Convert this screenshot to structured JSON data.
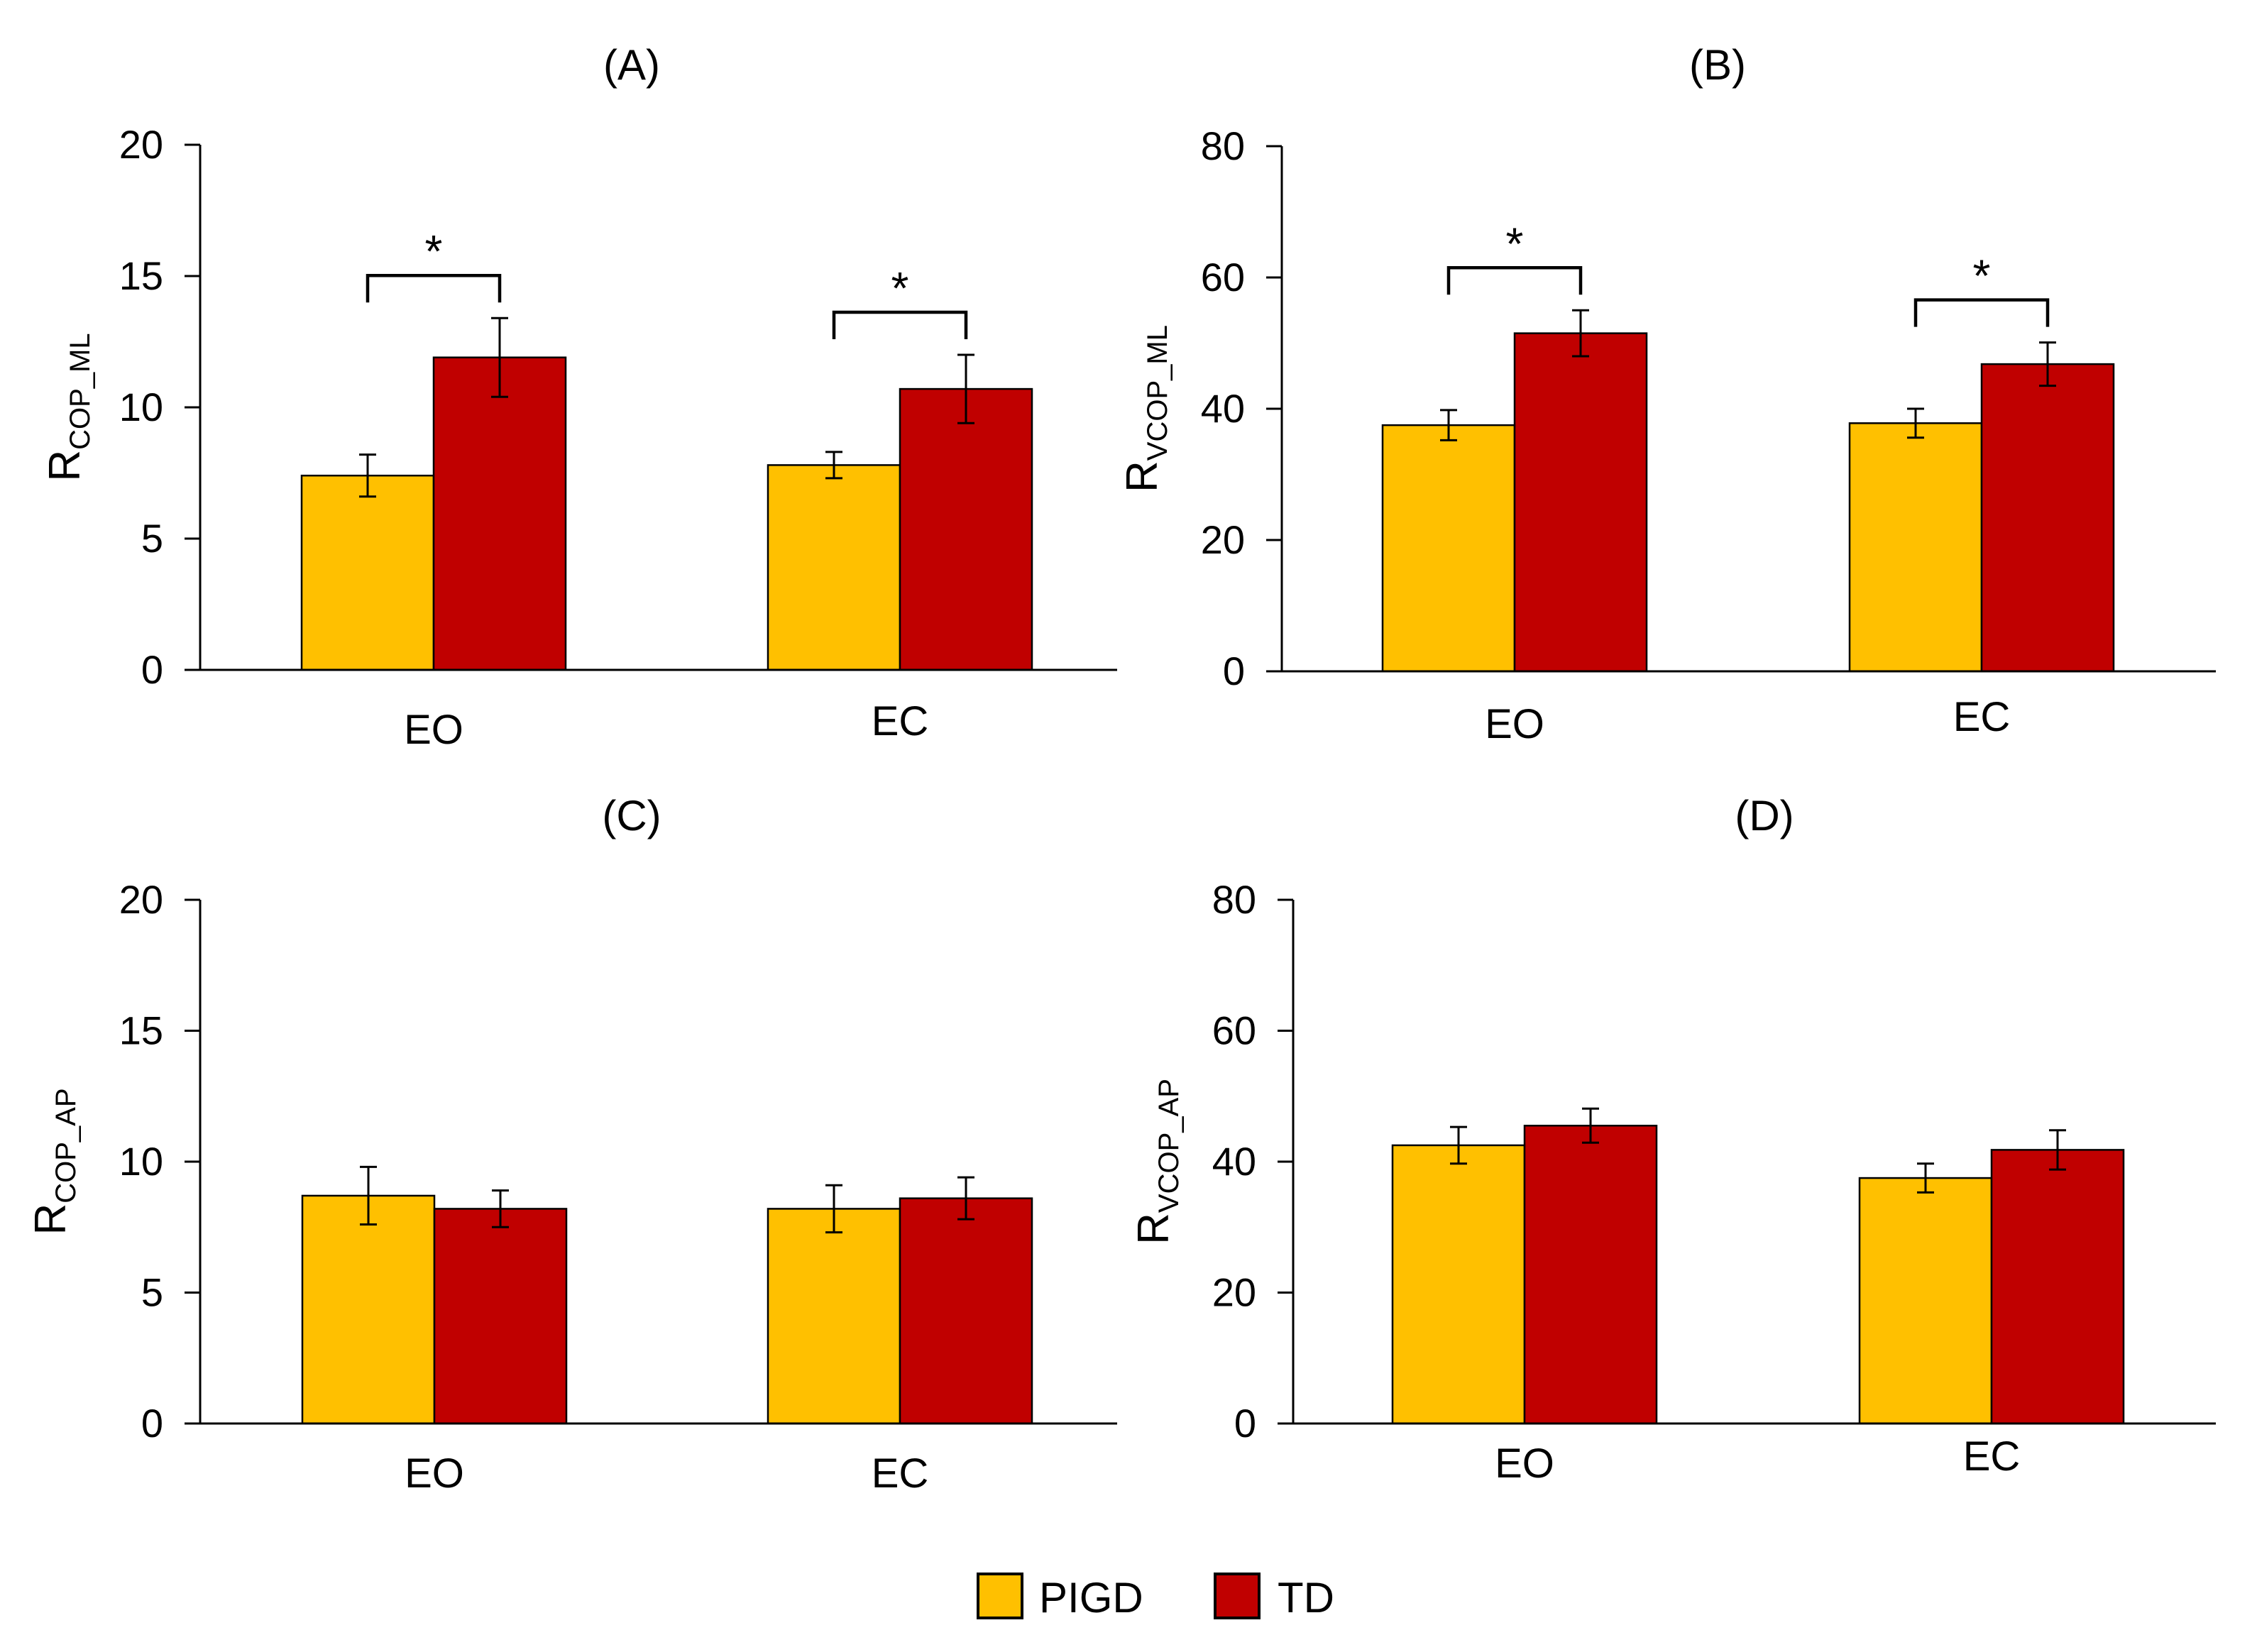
{
  "colors": {
    "PIGD": "#FFC000",
    "TD": "#C00000"
  },
  "legend": {
    "items": [
      {
        "name": "PIGD"
      },
      {
        "name": "TD"
      }
    ]
  },
  "chart_data": [
    {
      "id": "A",
      "type": "bar",
      "title": "(A)",
      "ylabel_main": "R",
      "ylabel_sub": "COP_ML",
      "ylim": [
        0,
        20
      ],
      "yticks": [
        "0",
        "5",
        "10",
        "15",
        "20"
      ],
      "categories": [
        "EO",
        "EC"
      ],
      "series": [
        {
          "name": "PIGD",
          "values": [
            7.4,
            7.8
          ],
          "errors": [
            0.8,
            0.5
          ]
        },
        {
          "name": "TD",
          "values": [
            11.9,
            10.7
          ],
          "errors": [
            1.5,
            1.3
          ]
        }
      ],
      "significance": [
        {
          "category": 0,
          "label": "*"
        },
        {
          "category": 1,
          "label": "*"
        }
      ]
    },
    {
      "id": "B",
      "type": "bar",
      "title": "(B)",
      "ylabel_main": "R",
      "ylabel_sub": "VCOP_ML",
      "ylim": [
        0,
        80
      ],
      "yticks": [
        "0",
        "20",
        "40",
        "60",
        "80"
      ],
      "categories": [
        "EO",
        "EC"
      ],
      "series": [
        {
          "name": "PIGD",
          "values": [
            37.5,
            37.8
          ],
          "errors": [
            2.3,
            2.2
          ]
        },
        {
          "name": "TD",
          "values": [
            51.5,
            46.8
          ],
          "errors": [
            3.5,
            3.3
          ]
        }
      ],
      "significance": [
        {
          "category": 0,
          "label": "*"
        },
        {
          "category": 1,
          "label": "*"
        }
      ]
    },
    {
      "id": "C",
      "type": "bar",
      "title": "(C)",
      "ylabel_main": "R",
      "ylabel_sub": "COP_AP",
      "ylim": [
        0,
        20
      ],
      "yticks": [
        "0",
        "5",
        "10",
        "15",
        "20"
      ],
      "categories": [
        "EO",
        "EC"
      ],
      "series": [
        {
          "name": "PIGD",
          "values": [
            8.7,
            8.2
          ],
          "errors": [
            1.1,
            0.9
          ]
        },
        {
          "name": "TD",
          "values": [
            8.2,
            8.6
          ],
          "errors": [
            0.7,
            0.8
          ]
        }
      ],
      "significance": []
    },
    {
      "id": "D",
      "type": "bar",
      "title": "(D)",
      "ylabel_main": "R",
      "ylabel_sub": "VCOP_AP",
      "ylim": [
        0,
        80
      ],
      "yticks": [
        "0",
        "20",
        "40",
        "60",
        "80"
      ],
      "categories": [
        "EO",
        "EC"
      ],
      "series": [
        {
          "name": "PIGD",
          "values": [
            42.5,
            37.5
          ],
          "errors": [
            2.8,
            2.2
          ]
        },
        {
          "name": "TD",
          "values": [
            45.5,
            41.8
          ],
          "errors": [
            2.6,
            3.0
          ]
        }
      ],
      "significance": []
    }
  ]
}
